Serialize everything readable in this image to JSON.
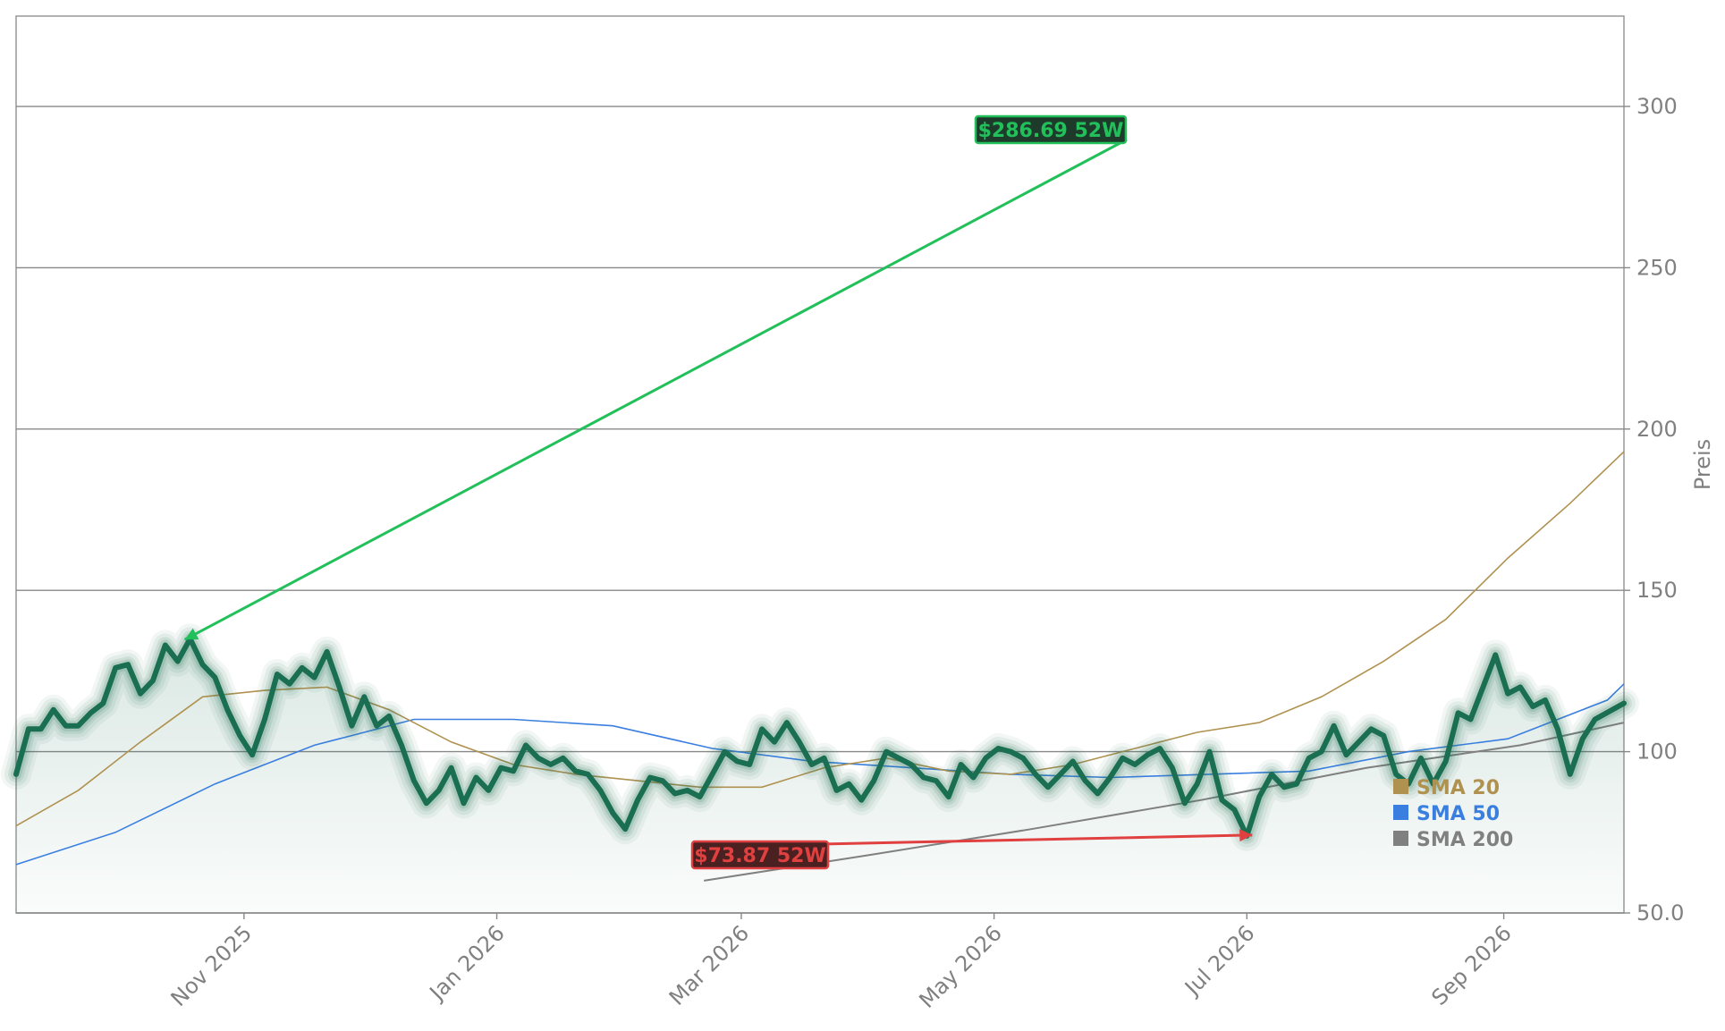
{
  "chart_data": {
    "type": "line",
    "ylabel": "Preis",
    "xlabel": "",
    "ylim": [
      50,
      328
    ],
    "y_ticks": [
      50,
      100,
      150,
      200,
      250,
      300
    ],
    "y_tick_labels": [
      "50.0",
      "100",
      "150",
      "200",
      "250",
      "300"
    ],
    "x_range": [
      "2025-09-07",
      "2026-09-30"
    ],
    "x_ticks": [
      {
        "date": "2025-11-01",
        "label": "Nov 2025"
      },
      {
        "date": "2026-01-01",
        "label": "Jan 2026"
      },
      {
        "date": "2026-03-01",
        "label": "Mar 2026"
      },
      {
        "date": "2026-05-01",
        "label": "May 2026"
      },
      {
        "date": "2026-07-01",
        "label": "Jul 2026"
      },
      {
        "date": "2026-09-01",
        "label": "Sep 2026"
      }
    ],
    "grid": "horizontal",
    "legend_position": "bottom-right",
    "colors": {
      "price": "#1a6e52",
      "sma20": "#b09250",
      "sma50": "#3a7fe0",
      "sma200": "#808080",
      "high": "#22c05a",
      "low": "#e04040"
    },
    "series": [
      {
        "key": "price",
        "values": [
          [
            "2025-09-07",
            93
          ],
          [
            "2025-09-10",
            107
          ],
          [
            "2025-09-13",
            107
          ],
          [
            "2025-09-16",
            113
          ],
          [
            "2025-09-19",
            108
          ],
          [
            "2025-09-22",
            108
          ],
          [
            "2025-09-25",
            112
          ],
          [
            "2025-09-28",
            115
          ],
          [
            "2025-10-01",
            126
          ],
          [
            "2025-10-04",
            127
          ],
          [
            "2025-10-07",
            118
          ],
          [
            "2025-10-10",
            122
          ],
          [
            "2025-10-13",
            133
          ],
          [
            "2025-10-16",
            128
          ],
          [
            "2025-10-19",
            135
          ],
          [
            "2025-10-22",
            127
          ],
          [
            "2025-10-25",
            123
          ],
          [
            "2025-10-28",
            113
          ],
          [
            "2025-10-31",
            105
          ],
          [
            "2025-11-03",
            99
          ],
          [
            "2025-11-06",
            110
          ],
          [
            "2025-11-09",
            124
          ],
          [
            "2025-11-12",
            121
          ],
          [
            "2025-11-15",
            126
          ],
          [
            "2025-11-18",
            123
          ],
          [
            "2025-11-21",
            131
          ],
          [
            "2025-11-24",
            120
          ],
          [
            "2025-11-27",
            108
          ],
          [
            "2025-11-30",
            117
          ],
          [
            "2025-12-03",
            108
          ],
          [
            "2025-12-06",
            111
          ],
          [
            "2025-12-09",
            102
          ],
          [
            "2025-12-12",
            91
          ],
          [
            "2025-12-15",
            84
          ],
          [
            "2025-12-18",
            88
          ],
          [
            "2025-12-21",
            95
          ],
          [
            "2025-12-24",
            84
          ],
          [
            "2025-12-27",
            92
          ],
          [
            "2025-12-30",
            88
          ],
          [
            "2026-01-02",
            95
          ],
          [
            "2026-01-05",
            94
          ],
          [
            "2026-01-08",
            102
          ],
          [
            "2026-01-11",
            98
          ],
          [
            "2026-01-14",
            96
          ],
          [
            "2026-01-17",
            98
          ],
          [
            "2026-01-20",
            94
          ],
          [
            "2026-01-23",
            93
          ],
          [
            "2026-01-26",
            88
          ],
          [
            "2026-01-29",
            81
          ],
          [
            "2026-02-01",
            76
          ],
          [
            "2026-02-04",
            85
          ],
          [
            "2026-02-07",
            92
          ],
          [
            "2026-02-10",
            91
          ],
          [
            "2026-02-13",
            87
          ],
          [
            "2026-02-16",
            88
          ],
          [
            "2026-02-19",
            86
          ],
          [
            "2026-02-22",
            93
          ],
          [
            "2026-02-25",
            100
          ],
          [
            "2026-02-28",
            97
          ],
          [
            "2026-03-03",
            96
          ],
          [
            "2026-03-06",
            107
          ],
          [
            "2026-03-09",
            103
          ],
          [
            "2026-03-12",
            109
          ],
          [
            "2026-03-15",
            103
          ],
          [
            "2026-03-18",
            96
          ],
          [
            "2026-03-21",
            98
          ],
          [
            "2026-03-24",
            88
          ],
          [
            "2026-03-27",
            90
          ],
          [
            "2026-03-30",
            85
          ],
          [
            "2026-04-02",
            91
          ],
          [
            "2026-04-05",
            100
          ],
          [
            "2026-04-08",
            98
          ],
          [
            "2026-04-11",
            96
          ],
          [
            "2026-04-14",
            92
          ],
          [
            "2026-04-17",
            91
          ],
          [
            "2026-04-20",
            86
          ],
          [
            "2026-04-23",
            96
          ],
          [
            "2026-04-26",
            92
          ],
          [
            "2026-04-29",
            98
          ],
          [
            "2026-05-02",
            101
          ],
          [
            "2026-05-05",
            100
          ],
          [
            "2026-05-08",
            98
          ],
          [
            "2026-05-11",
            93
          ],
          [
            "2026-05-14",
            89
          ],
          [
            "2026-05-17",
            93
          ],
          [
            "2026-05-20",
            97
          ],
          [
            "2026-05-23",
            91
          ],
          [
            "2026-05-26",
            87
          ],
          [
            "2026-05-29",
            92
          ],
          [
            "2026-06-01",
            98
          ],
          [
            "2026-06-04",
            96
          ],
          [
            "2026-06-07",
            99
          ],
          [
            "2026-06-10",
            101
          ],
          [
            "2026-06-13",
            95
          ],
          [
            "2026-06-16",
            84
          ],
          [
            "2026-06-19",
            90
          ],
          [
            "2026-06-22",
            100
          ],
          [
            "2026-06-25",
            85
          ],
          [
            "2026-06-28",
            82
          ],
          [
            "2026-07-01",
            73.87
          ],
          [
            "2026-07-04",
            86
          ],
          [
            "2026-07-07",
            93
          ],
          [
            "2026-07-10",
            89
          ],
          [
            "2026-07-13",
            90
          ],
          [
            "2026-07-16",
            98
          ],
          [
            "2026-07-19",
            100
          ],
          [
            "2026-07-22",
            108
          ],
          [
            "2026-07-25",
            99
          ],
          [
            "2026-07-28",
            103
          ],
          [
            "2026-07-31",
            107
          ],
          [
            "2026-08-03",
            105
          ],
          [
            "2026-08-06",
            93
          ],
          [
            "2026-08-09",
            90
          ],
          [
            "2026-08-12",
            98
          ],
          [
            "2026-08-15",
            90
          ],
          [
            "2026-08-18",
            97
          ],
          [
            "2026-08-21",
            112
          ],
          [
            "2026-08-24",
            110
          ],
          [
            "2026-08-27",
            120
          ],
          [
            "2026-08-30",
            130
          ],
          [
            "2026-09-02",
            118
          ],
          [
            "2026-09-05",
            120
          ],
          [
            "2026-09-08",
            114
          ],
          [
            "2026-09-11",
            116
          ],
          [
            "2026-09-14",
            107
          ],
          [
            "2026-09-17",
            93
          ],
          [
            "2026-09-20",
            104
          ],
          [
            "2026-09-23",
            110
          ],
          [
            "2026-09-30",
            115
          ]
        ]
      },
      {
        "key": "sma20",
        "name": "SMA 20",
        "values": [
          [
            "2025-09-07",
            77
          ],
          [
            "2025-09-22",
            88
          ],
          [
            "2025-10-07",
            103
          ],
          [
            "2025-10-22",
            117
          ],
          [
            "2025-11-06",
            119
          ],
          [
            "2025-11-21",
            120
          ],
          [
            "2025-12-06",
            113
          ],
          [
            "2025-12-21",
            103
          ],
          [
            "2026-01-05",
            96
          ],
          [
            "2026-01-20",
            93
          ],
          [
            "2026-02-04",
            91
          ],
          [
            "2026-02-19",
            89
          ],
          [
            "2026-03-06",
            89
          ],
          [
            "2026-03-21",
            95
          ],
          [
            "2026-04-05",
            98
          ],
          [
            "2026-04-20",
            94
          ],
          [
            "2026-05-05",
            93
          ],
          [
            "2026-05-20",
            96
          ],
          [
            "2026-06-04",
            101
          ],
          [
            "2026-06-19",
            106
          ],
          [
            "2026-07-04",
            109
          ],
          [
            "2026-07-19",
            117
          ],
          [
            "2026-08-03",
            128
          ],
          [
            "2026-08-18",
            141
          ],
          [
            "2026-09-02",
            160
          ],
          [
            "2026-09-17",
            177
          ],
          [
            "2026-09-30",
            193
          ]
        ]
      },
      {
        "key": "sma50",
        "name": "SMA 50",
        "values": [
          [
            "2025-09-07",
            65
          ],
          [
            "2025-10-01",
            75
          ],
          [
            "2025-10-25",
            90
          ],
          [
            "2025-11-18",
            102
          ],
          [
            "2025-12-12",
            110
          ],
          [
            "2026-01-05",
            110
          ],
          [
            "2026-01-29",
            108
          ],
          [
            "2026-02-22",
            101
          ],
          [
            "2026-03-18",
            97
          ],
          [
            "2026-04-11",
            95
          ],
          [
            "2026-05-05",
            93
          ],
          [
            "2026-05-29",
            92
          ],
          [
            "2026-06-22",
            93
          ],
          [
            "2026-07-16",
            94
          ],
          [
            "2026-08-09",
            100
          ],
          [
            "2026-09-02",
            104
          ],
          [
            "2026-09-26",
            116
          ],
          [
            "2026-09-30",
            121
          ]
        ]
      },
      {
        "key": "sma200",
        "name": "SMA 200",
        "values": [
          [
            "2026-02-20",
            60
          ],
          [
            "2026-04-01",
            68
          ],
          [
            "2026-05-10",
            76
          ],
          [
            "2026-06-20",
            85
          ],
          [
            "2026-07-30",
            95
          ],
          [
            "2026-09-05",
            102
          ],
          [
            "2026-09-30",
            109
          ]
        ]
      }
    ],
    "annotations": [
      {
        "key": "high",
        "label": "$286.69 52W",
        "value": 286.69
      },
      {
        "key": "low",
        "label": "$73.87 52W",
        "value": 73.87
      }
    ]
  }
}
